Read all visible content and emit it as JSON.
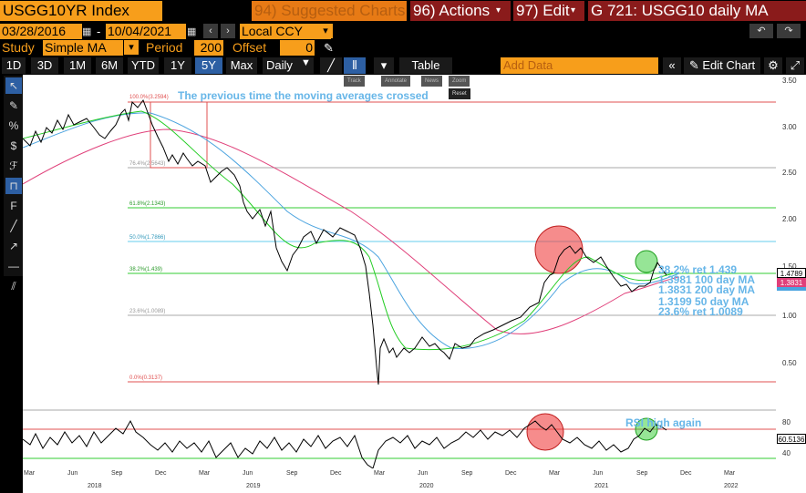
{
  "titlebar": {
    "ticker": "USGG10YR Index",
    "suggested": "94) Suggested Charts",
    "actions": "96) Actions",
    "edit": "97) Edit",
    "chart_title": "G 721: USGG10 daily MA"
  },
  "datebar": {
    "start_date": "03/28/2016",
    "dash": "-",
    "end_date": "10/04/2021",
    "currency": "Local CCY"
  },
  "studybar": {
    "study_label": "Study",
    "study_value": "Simple MA",
    "period_label": "Period",
    "period_value": "200",
    "offset_label": "Offset",
    "offset_value": "0"
  },
  "toolbar": {
    "ranges": [
      "1D",
      "3D",
      "1M",
      "6M",
      "YTD",
      "1Y",
      "5Y",
      "Max"
    ],
    "selected": "5Y",
    "interval": "Daily",
    "table": "Table",
    "add_data_placeholder": "Add Data",
    "edit_chart": "Edit Chart"
  },
  "mini_toolbar": {
    "track": "Track",
    "annotate": "Annotate",
    "news": "News",
    "zoom": "Zoom",
    "reset": "Reset"
  },
  "annotations": {
    "main": "The previous time the moving averages crossed",
    "rsi": "RSI high again"
  },
  "fib_levels": {
    "l100": "100.0%(3.2594)",
    "l764": "76.4%(2.5643)",
    "l618": "61.8%(2.1343)",
    "l50": "50.0%(1.7866)",
    "l382": "38.2%(1.439)",
    "l236": "23.6%(1.0089)",
    "l0": "0.0%(0.3137)"
  },
  "legend_text": {
    "ret382": "38.2% ret 1.439",
    "ma100": "1.3981 100 day MA",
    "ma200": "1.3831 200 day MA",
    "ma50": "1.3199 50 day MA",
    "ret236": "23.6% ret 1.0089"
  },
  "right_axis": {
    "ticks": [
      "3.50",
      "3.00",
      "2.50",
      "2.00",
      "1.50",
      "1.00",
      "0.50"
    ],
    "price_tag": "1.4789",
    "ma_tag": "1.3831",
    "rsi_ticks": [
      "80",
      "40"
    ],
    "rsi_tag": "60.5136"
  },
  "x_axis": {
    "months": [
      "Mar",
      "Jun",
      "Sep",
      "Dec",
      "Mar",
      "Jun",
      "Sep",
      "Dec",
      "Mar",
      "Jun",
      "Sep",
      "Dec",
      "Mar",
      "Jun",
      "Sep",
      "Dec",
      "Mar"
    ],
    "years": [
      "2018",
      "2019",
      "2020",
      "2021",
      "2022"
    ]
  },
  "colors": {
    "orange": "#f79e1b",
    "price_line": "#000000",
    "ma50": "#22cc22",
    "ma100": "#4aa3df",
    "ma200": "#e0407a",
    "red_circle": "#f04040",
    "green_circle": "#40d040"
  }
}
